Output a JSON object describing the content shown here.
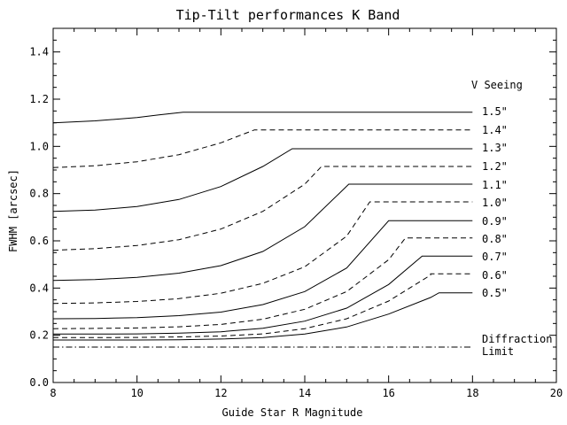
{
  "chart_data": {
    "type": "line",
    "title": "Tip-Tilt performances K Band",
    "xlabel": "Guide Star R Magnitude",
    "ylabel": "FWHM [arcsec]",
    "xlim": [
      8,
      20
    ],
    "ylim": [
      0,
      1.5
    ],
    "xticks": [
      8,
      10,
      12,
      14,
      16,
      18,
      20
    ],
    "yticks": [
      0.0,
      0.2,
      0.4,
      0.6,
      0.8,
      1.0,
      1.2,
      1.4
    ],
    "xtick_labels": [
      "8",
      "10",
      "12",
      "14",
      "16",
      "18",
      "20"
    ],
    "ytick_labels": [
      "0.0",
      "0.2",
      "0.4",
      "0.6",
      "0.8",
      "1.0",
      "1.2",
      "1.4"
    ],
    "grid": false,
    "legend_title": "V Seeing",
    "series": [
      {
        "name": "1.5\"",
        "line_style": "solid",
        "x": [
          8,
          9,
          10,
          10.5,
          11.1,
          18
        ],
        "y": [
          1.1,
          1.108,
          1.122,
          1.133,
          1.145,
          1.145
        ]
      },
      {
        "name": "1.4\"",
        "line_style": "dashed",
        "x": [
          8,
          9,
          10,
          11,
          12,
          12.8,
          18
        ],
        "y": [
          0.91,
          0.918,
          0.935,
          0.965,
          1.015,
          1.07,
          1.07
        ]
      },
      {
        "name": "1.3\"",
        "line_style": "solid",
        "x": [
          8,
          9,
          10,
          11,
          12,
          13,
          13.7,
          18
        ],
        "y": [
          0.725,
          0.73,
          0.745,
          0.775,
          0.83,
          0.915,
          0.99,
          0.99
        ]
      },
      {
        "name": "1.2\"",
        "line_style": "dashed",
        "x": [
          8,
          9,
          10,
          11,
          12,
          13,
          14,
          14.4,
          18
        ],
        "y": [
          0.56,
          0.567,
          0.58,
          0.605,
          0.65,
          0.725,
          0.84,
          0.915,
          0.915
        ]
      },
      {
        "name": "1.1\"",
        "line_style": "solid",
        "x": [
          8,
          9,
          10,
          11,
          12,
          13,
          14,
          15.05,
          18
        ],
        "y": [
          0.432,
          0.436,
          0.445,
          0.463,
          0.495,
          0.555,
          0.66,
          0.84,
          0.84
        ]
      },
      {
        "name": "1.0\"",
        "line_style": "dashed",
        "x": [
          8,
          9,
          10,
          11,
          12,
          13,
          14,
          15,
          15.55,
          18
        ],
        "y": [
          0.335,
          0.337,
          0.343,
          0.355,
          0.378,
          0.42,
          0.49,
          0.62,
          0.765,
          0.765
        ]
      },
      {
        "name": "0.9\"",
        "line_style": "solid",
        "x": [
          8,
          9,
          10,
          11,
          12,
          13,
          14,
          15,
          16.0,
          18
        ],
        "y": [
          0.27,
          0.271,
          0.275,
          0.283,
          0.298,
          0.33,
          0.385,
          0.485,
          0.685,
          0.685
        ]
      },
      {
        "name": "0.8\"",
        "line_style": "dashed",
        "x": [
          8,
          9,
          10,
          11,
          12,
          13,
          14,
          15,
          16,
          16.4,
          18
        ],
        "y": [
          0.228,
          0.229,
          0.231,
          0.236,
          0.246,
          0.268,
          0.31,
          0.385,
          0.52,
          0.612,
          0.612
        ]
      },
      {
        "name": "0.7\"",
        "line_style": "solid",
        "x": [
          8,
          9,
          10,
          11,
          12,
          13,
          14,
          15,
          16,
          16.8,
          18
        ],
        "y": [
          0.205,
          0.205,
          0.206,
          0.209,
          0.215,
          0.23,
          0.26,
          0.315,
          0.415,
          0.535,
          0.535
        ]
      },
      {
        "name": "0.6\"",
        "line_style": "dashed",
        "x": [
          8,
          9,
          10,
          11,
          12,
          13,
          14,
          15,
          16,
          17,
          17.0,
          18
        ],
        "y": [
          0.19,
          0.19,
          0.191,
          0.193,
          0.197,
          0.206,
          0.228,
          0.27,
          0.345,
          0.455,
          0.46,
          0.46
        ]
      },
      {
        "name": "0.5\"",
        "line_style": "solid",
        "x": [
          8,
          9,
          10,
          11,
          12,
          13,
          14,
          15,
          16,
          17,
          17.2,
          18
        ],
        "y": [
          0.18,
          0.18,
          0.18,
          0.181,
          0.184,
          0.19,
          0.205,
          0.235,
          0.29,
          0.36,
          0.38,
          0.38
        ]
      }
    ],
    "reference_line": {
      "name": "Diffraction Limit",
      "line_style": "dashdot",
      "x": [
        8,
        18
      ],
      "y": [
        0.15,
        0.15
      ]
    }
  },
  "reference_label_lines": [
    "Diffraction",
    "Limit"
  ]
}
